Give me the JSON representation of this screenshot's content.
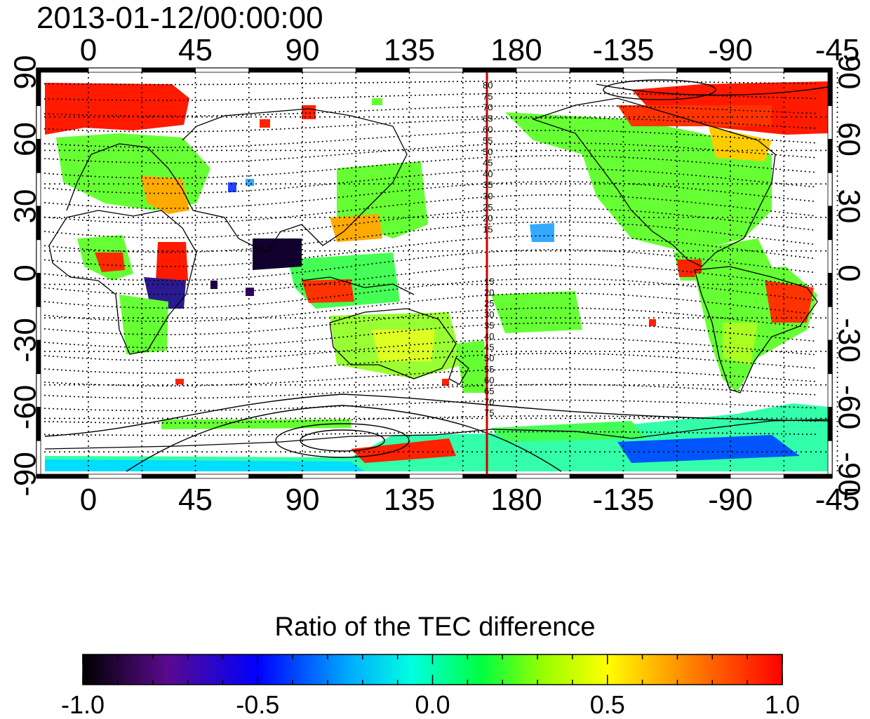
{
  "title": "2013-01-12/00:00:00",
  "axes": {
    "x_tick_labels": [
      "0",
      "45",
      "90",
      "135",
      "180",
      "-135",
      "-90",
      "-45"
    ],
    "y_tick_labels": [
      "90",
      "60",
      "30",
      "0",
      "-30",
      "-60",
      "-90"
    ],
    "ylim": [
      -90,
      90
    ]
  },
  "meridian": {
    "longitude": 180,
    "color": "#cc0000"
  },
  "contour_labels_north": [
    "80",
    "75",
    "70",
    "65",
    "60",
    "55",
    "50",
    "45",
    "40",
    "35",
    "30",
    "25",
    "20",
    "15"
  ],
  "contour_labels_south": [
    "15",
    "20",
    "25",
    "30",
    "35",
    "40",
    "45",
    "50",
    "55",
    "60",
    "65",
    "70",
    "75"
  ],
  "colorbar": {
    "title": "Ratio of the TEC difference",
    "range": [
      -1.0,
      1.0
    ],
    "tick_labels": [
      "-1.0",
      "-0.5",
      "0.0",
      "0.5",
      "1.0"
    ],
    "tick_values": [
      -1.0,
      -0.5,
      0.0,
      0.5,
      1.0
    ],
    "colors": [
      "#000000",
      "#5a0a8c",
      "#0000ff",
      "#00aaff",
      "#00ffe0",
      "#00ff40",
      "#9aff00",
      "#ffff00",
      "#ff8000",
      "#ff0000"
    ]
  }
}
